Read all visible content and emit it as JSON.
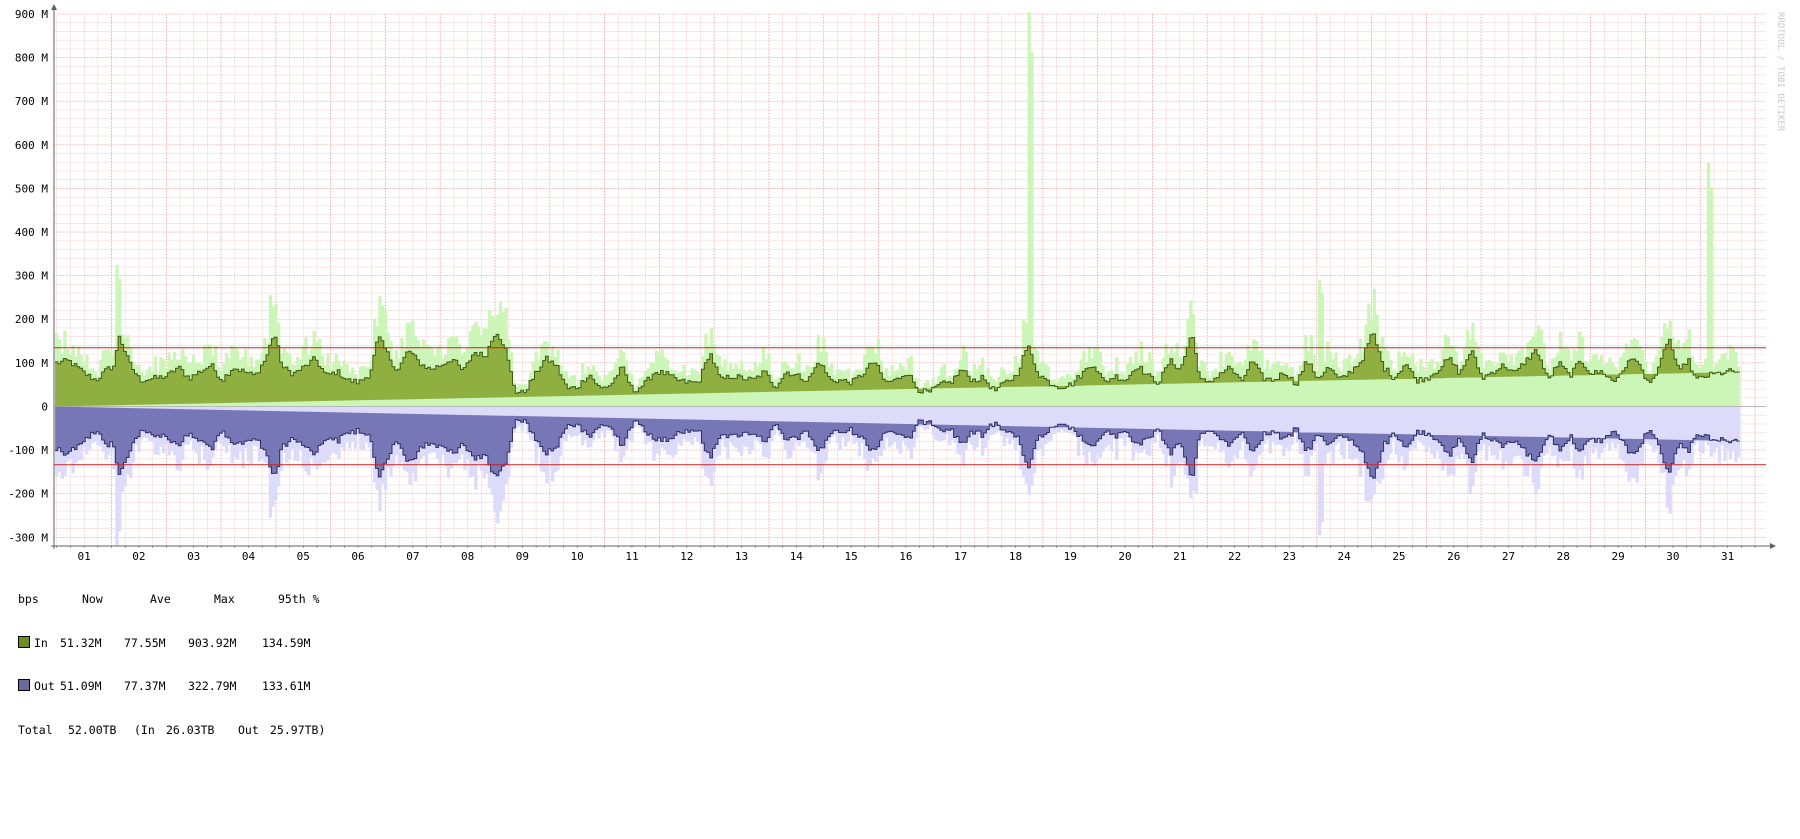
{
  "chart_data": {
    "type": "area",
    "vertical_label": "RRDTOOL / TOBI OETIKER",
    "x_ticks": [
      "01",
      "02",
      "03",
      "04",
      "05",
      "06",
      "07",
      "08",
      "09",
      "10",
      "11",
      "12",
      "13",
      "14",
      "15",
      "16",
      "17",
      "18",
      "19",
      "20",
      "21",
      "22",
      "23",
      "24",
      "25",
      "26",
      "27",
      "28",
      "29",
      "30",
      "31"
    ],
    "y_ticks": [
      "900 M",
      "800 M",
      "700 M",
      "600 M",
      "500 M",
      "400 M",
      "300 M",
      "200 M",
      "100 M",
      "0",
      "-100 M",
      "-200 M",
      "-300 M"
    ],
    "y_tick_values": [
      900,
      800,
      700,
      600,
      500,
      400,
      300,
      200,
      100,
      0,
      -100,
      -200,
      -300
    ],
    "ylim": [
      -320,
      900
    ],
    "xlim_days": [
      0.45,
      31.7
    ],
    "grid": true,
    "percentile_95": {
      "in": 134.59,
      "out": -133.61
    },
    "series": [
      {
        "name": "In",
        "color": "#8fb040",
        "outline": "#3b5a10",
        "max_color": "#ccf5b8",
        "avg_key_days": [
          0.5,
          0.7,
          0.85,
          1.0,
          1.2,
          1.4,
          1.55,
          1.6,
          1.8,
          2.0,
          2.3,
          2.5,
          2.7,
          2.9,
          3.1,
          3.3,
          3.5,
          3.7,
          3.9,
          4.1,
          4.3,
          4.45,
          4.6,
          4.8,
          5.0,
          5.2,
          5.4,
          5.6,
          5.8,
          6.0,
          6.2,
          6.35,
          6.5,
          6.7,
          6.9,
          7.1,
          7.3,
          7.5,
          7.7,
          7.9,
          8.1,
          8.3,
          8.5,
          8.65,
          8.85,
          9.0,
          9.2,
          9.4,
          9.6,
          9.8,
          10.0,
          10.2,
          10.4,
          10.6,
          10.8,
          11.0,
          11.2,
          11.4,
          11.6,
          11.8,
          12.0,
          12.2,
          12.4,
          12.6,
          12.8,
          13.0,
          13.2,
          13.4,
          13.6,
          13.8,
          14.0,
          14.2,
          14.4,
          14.6,
          14.8,
          15.0,
          15.2,
          15.4,
          15.6,
          15.8,
          16.0,
          16.2,
          16.4,
          16.6,
          16.8,
          17.0,
          17.2,
          17.4,
          17.6,
          17.8,
          18.0,
          18.2,
          18.4,
          18.6,
          18.8,
          19.0,
          19.2,
          19.4,
          19.6,
          19.8,
          20.0,
          20.2,
          20.4,
          20.6,
          20.8,
          21.0,
          21.2,
          21.35,
          21.5,
          21.7,
          21.9,
          22.1,
          22.3,
          22.5,
          22.7,
          22.9,
          23.1,
          23.3,
          23.5,
          23.7,
          23.9,
          24.1,
          24.3,
          24.5,
          24.7,
          24.9,
          25.1,
          25.3,
          25.5,
          25.7,
          25.9,
          26.1,
          26.3,
          26.5,
          26.7,
          26.9,
          27.1,
          27.3,
          27.5,
          27.7,
          27.9,
          28.1,
          28.3,
          28.5,
          28.7,
          28.9,
          29.1,
          29.3,
          29.5,
          29.7,
          29.9,
          30.1,
          30.25,
          30.4,
          30.6,
          30.8,
          31.0,
          31.2,
          31.4,
          31.6
        ],
        "avg_key_values": [
          100,
          105,
          90,
          75,
          60,
          85,
          95,
          170,
          100,
          60,
          65,
          70,
          90,
          65,
          80,
          95,
          60,
          90,
          80,
          70,
          110,
          170,
          90,
          75,
          90,
          110,
          70,
          80,
          60,
          55,
          75,
          160,
          125,
          80,
          130,
          100,
          85,
          95,
          110,
          80,
          125,
          115,
          175,
          140,
          35,
          30,
          70,
          110,
          95,
          40,
          45,
          75,
          40,
          50,
          90,
          35,
          50,
          80,
          75,
          60,
          55,
          55,
          125,
          60,
          70,
          65,
          60,
          80,
          45,
          80,
          70,
          60,
          105,
          60,
          60,
          55,
          75,
          105,
          55,
          60,
          80,
          40,
          30,
          50,
          55,
          85,
          60,
          65,
          35,
          55,
          70,
          140,
          75,
          55,
          45,
          50,
          75,
          100,
          55,
          70,
          60,
          95,
          70,
          55,
          105,
          85,
          170,
          65,
          50,
          75,
          90,
          55,
          105,
          65,
          60,
          80,
          50,
          105,
          65,
          90,
          60,
          80,
          105,
          170,
          90,
          65,
          100,
          60,
          65,
          85,
          110,
          75,
          130,
          65,
          80,
          95,
          75,
          105,
          130,
          60,
          100,
          70,
          105,
          75,
          80,
          55,
          90,
          115,
          55,
          75,
          160,
          75,
          110,
          60,
          70,
          75,
          80,
          80
        ],
        "max_peaks": [
          {
            "day": 1.55,
            "value": 325
          },
          {
            "day": 4.35,
            "value": 255
          },
          {
            "day": 8.55,
            "value": 240
          },
          {
            "day": 18.2,
            "value": 903.92
          },
          {
            "day": 23.5,
            "value": 290
          },
          {
            "day": 30.6,
            "value": 558
          }
        ],
        "stats": {
          "now": "51.32M",
          "ave": "77.55M",
          "max": "903.92M",
          "p95": "134.59M"
        }
      },
      {
        "name": "Out",
        "color": "#7777b8",
        "outline": "#2e2e63",
        "max_color": "#dcdcfa",
        "mirror_of_in": true,
        "max_peaks": [
          {
            "day": 1.55,
            "value": -318
          },
          {
            "day": 23.5,
            "value": -295
          },
          {
            "day": 4.35,
            "value": -255
          },
          {
            "day": 8.55,
            "value": -240
          }
        ],
        "stats": {
          "now": "51.09M",
          "ave": "77.37M",
          "max": "322.79M",
          "p95": "133.61M"
        }
      }
    ]
  },
  "legend": {
    "headers": {
      "unit": "bps",
      "now": "Now",
      "ave": "Ave",
      "max": "Max",
      "p95": "95th %"
    },
    "rows": [
      {
        "label": "In",
        "color": "#6b8e23",
        "now": "51.32M",
        "ave": "77.55M",
        "max": "903.92M",
        "p95": "134.59M"
      },
      {
        "label": "Out",
        "color": "#6a6a9e",
        "now": "51.09M",
        "ave": "77.37M",
        "max": "322.79M",
        "p95": "133.61M"
      }
    ],
    "total": {
      "label": "Total",
      "value": "52.00TB",
      "in_label": "(In",
      "in_value": "26.03TB",
      "out_label": "Out",
      "out_value": "25.97TB)"
    }
  }
}
